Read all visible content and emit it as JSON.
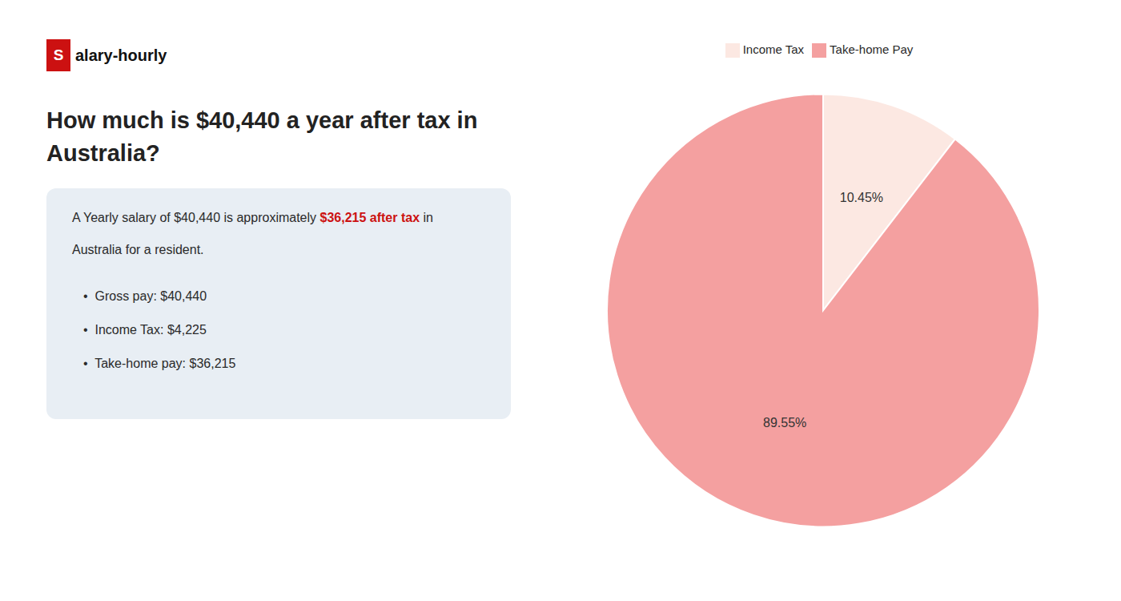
{
  "chart_data": {
    "type": "pie",
    "title": "How much is $40,440 a year after tax in\nAustralia?",
    "annotations": [
      [
        {
          "text": "S",
          "color": "#cc1111"
        },
        {
          "text": "alary-hourly"
        }
      ],
      [
        {
          "text": "A Yearly salary of $40,440 is approximately "
        },
        {
          "text": "$36,215 after tax",
          "color": "#cc1111"
        },
        {
          "text": " in"
        }
      ],
      [
        {
          "text": "Australia for a resident."
        }
      ],
      [
        {
          "text": "•  Gross pay: $40,440"
        }
      ],
      [
        {
          "text": "•  Income Tax: $4,225"
        }
      ],
      [
        {
          "text": "•  Take-home pay: $36,215"
        }
      ]
    ],
    "categories": [
      "Income Tax",
      "Take-home Pay"
    ],
    "values": [
      10.45,
      89.55
    ],
    "value_labels": [
      "10.45%",
      "89.55%"
    ],
    "colors": [
      "#fce8e2",
      "#f4a0a0"
    ],
    "data_labels": true,
    "legend": "top"
  }
}
